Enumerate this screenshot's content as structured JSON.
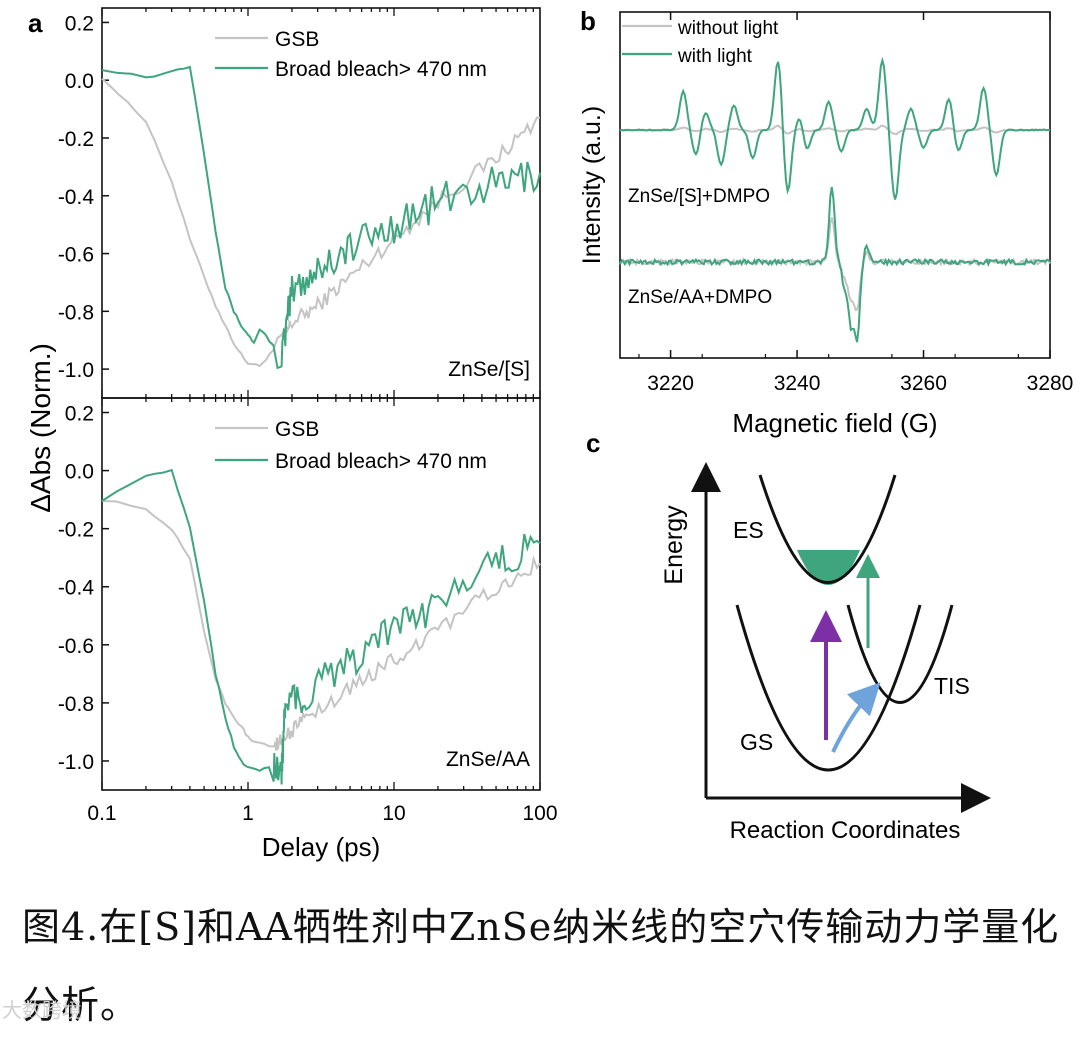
{
  "colors": {
    "gray": "#c4c4c4",
    "green": "#3ea57e",
    "purple": "#7d2fa6",
    "blue": "#6fa3dc",
    "black": "#111111"
  },
  "caption": "图4.在[S]和AA牺牲剂中ZnSe纳米线的空穴传输动力学量化分析。",
  "watermark": "大数跨境",
  "chart_data": [
    {
      "id": "a-top",
      "panel_label": "a",
      "type": "line",
      "sample": "ZnSe/[S]",
      "xscale": "log",
      "xlim": [
        0.1,
        100
      ],
      "ylim": [
        -1.1,
        0.25
      ],
      "yticks": [
        "0.2",
        "0.0",
        "-0.2",
        "-0.4",
        "-0.6",
        "-0.8",
        "-1.0"
      ],
      "ytick_values": [
        0.2,
        0.0,
        -0.2,
        -0.4,
        -0.6,
        -0.8,
        -1.0
      ],
      "ylabel": "ΔAbs (Norm.)",
      "legend": [
        "GSB",
        "Broad bleach> 470 nm"
      ],
      "series": [
        {
          "name": "GSB",
          "x": [
            0.1,
            0.15,
            0.2,
            0.3,
            0.4,
            0.5,
            0.6,
            0.7,
            0.8,
            0.9,
            1.0,
            1.2,
            1.4,
            1.7,
            2,
            3,
            5,
            10,
            20,
            50,
            100
          ],
          "y": [
            0.01,
            -0.08,
            -0.14,
            -0.35,
            -0.55,
            -0.68,
            -0.78,
            -0.85,
            -0.91,
            -0.95,
            -0.98,
            -0.99,
            -0.95,
            -0.9,
            -0.84,
            -0.78,
            -0.68,
            -0.55,
            -0.42,
            -0.27,
            -0.13
          ]
        },
        {
          "name": "Broad bleach> 470 nm",
          "x": [
            0.1,
            0.2,
            0.3,
            0.4,
            0.5,
            0.6,
            0.7,
            0.8,
            0.9,
            1.0,
            1.1,
            1.2,
            1.4,
            1.7,
            2,
            3,
            5,
            10,
            20,
            50,
            100
          ],
          "y": [
            0.04,
            0.01,
            0.03,
            0.05,
            -0.25,
            -0.52,
            -0.72,
            -0.8,
            -0.85,
            -0.88,
            -0.91,
            -0.86,
            -0.9,
            -0.96,
            -0.73,
            -0.65,
            -0.58,
            -0.5,
            -0.42,
            -0.36,
            -0.32
          ]
        }
      ]
    },
    {
      "id": "a-bottom",
      "type": "line",
      "sample": "ZnSe/AA",
      "xscale": "log",
      "xlim": [
        0.1,
        100
      ],
      "ylim": [
        -1.1,
        0.25
      ],
      "yticks": [
        "0.2",
        "0.0",
        "-0.2",
        "-0.4",
        "-0.6",
        "-0.8",
        "-1.0"
      ],
      "ytick_values": [
        0.2,
        0.0,
        -0.2,
        -0.4,
        -0.6,
        -0.8,
        -1.0
      ],
      "xticks": [
        "0.1",
        "1",
        "10",
        "100"
      ],
      "xtick_values": [
        0.1,
        1,
        10,
        100
      ],
      "xlabel": "Delay (ps)",
      "legend": [
        "GSB",
        "Broad bleach> 470 nm"
      ],
      "series": [
        {
          "name": "GSB",
          "x": [
            0.1,
            0.2,
            0.3,
            0.4,
            0.5,
            0.6,
            0.7,
            0.8,
            0.9,
            1.0,
            1.2,
            1.5,
            1.8,
            2.5,
            5,
            10,
            20,
            50,
            100
          ],
          "y": [
            -0.1,
            -0.13,
            -0.2,
            -0.3,
            -0.55,
            -0.72,
            -0.8,
            -0.85,
            -0.88,
            -0.92,
            -0.94,
            -0.95,
            -0.92,
            -0.85,
            -0.75,
            -0.65,
            -0.55,
            -0.4,
            -0.32
          ]
        },
        {
          "name": "Broad bleach> 470 nm",
          "x": [
            0.1,
            0.2,
            0.3,
            0.4,
            0.5,
            0.6,
            0.7,
            0.8,
            0.9,
            1.0,
            1.2,
            1.5,
            1.7,
            1.8,
            2.5,
            5,
            10,
            20,
            50,
            100
          ],
          "y": [
            -0.1,
            -0.02,
            0.0,
            -0.2,
            -0.45,
            -0.7,
            -0.85,
            -0.95,
            -1.0,
            -1.02,
            -1.03,
            -1.02,
            -1.04,
            -0.82,
            -0.78,
            -0.65,
            -0.55,
            -0.45,
            -0.3,
            -0.25
          ]
        }
      ]
    },
    {
      "id": "b",
      "panel_label": "b",
      "type": "line",
      "xlim": [
        3212,
        3280
      ],
      "xticks": [
        "3220",
        "3240",
        "3260",
        "3280"
      ],
      "xtick_values": [
        3220,
        3240,
        3260,
        3280
      ],
      "xlabel": "Magnetic field (G)",
      "ylabel": "Intensity (a.u.)",
      "legend": [
        "without light",
        "with light"
      ],
      "annotations": [
        "ZnSe/[S]+DMPO",
        "ZnSe/AA+DMPO"
      ],
      "spectrum_peaks_with_light_upper": [
        [
          3222,
          0.55
        ],
        [
          3224,
          -0.35
        ],
        [
          3225.5,
          0.25
        ],
        [
          3228,
          -0.5
        ],
        [
          3230,
          0.35
        ],
        [
          3233,
          -0.4
        ],
        [
          3237,
          1.0
        ],
        [
          3238.5,
          -0.9
        ],
        [
          3240.5,
          0.2
        ],
        [
          3241.5,
          -0.3
        ],
        [
          3245,
          0.4
        ],
        [
          3247,
          -0.3
        ],
        [
          3251,
          0.3
        ],
        [
          3253.5,
          1.0
        ],
        [
          3255.5,
          -1.0
        ],
        [
          3258,
          0.3
        ],
        [
          3260,
          -0.25
        ],
        [
          3264,
          0.45
        ],
        [
          3265.5,
          -0.3
        ],
        [
          3269.5,
          0.6
        ],
        [
          3271.5,
          -0.65
        ]
      ],
      "spectrum_peaks_lower": [
        [
          3245.5,
          1.0
        ],
        [
          3247.5,
          -0.3
        ],
        [
          3248.5,
          -0.8
        ],
        [
          3249.5,
          -1.0
        ],
        [
          3251,
          0.2
        ]
      ]
    },
    {
      "id": "c",
      "panel_label": "c",
      "type": "diagram",
      "ylabel": "Energy",
      "xlabel": "Reaction Coordinates",
      "curve_labels": [
        "ES",
        "GS",
        "TIS"
      ]
    }
  ]
}
